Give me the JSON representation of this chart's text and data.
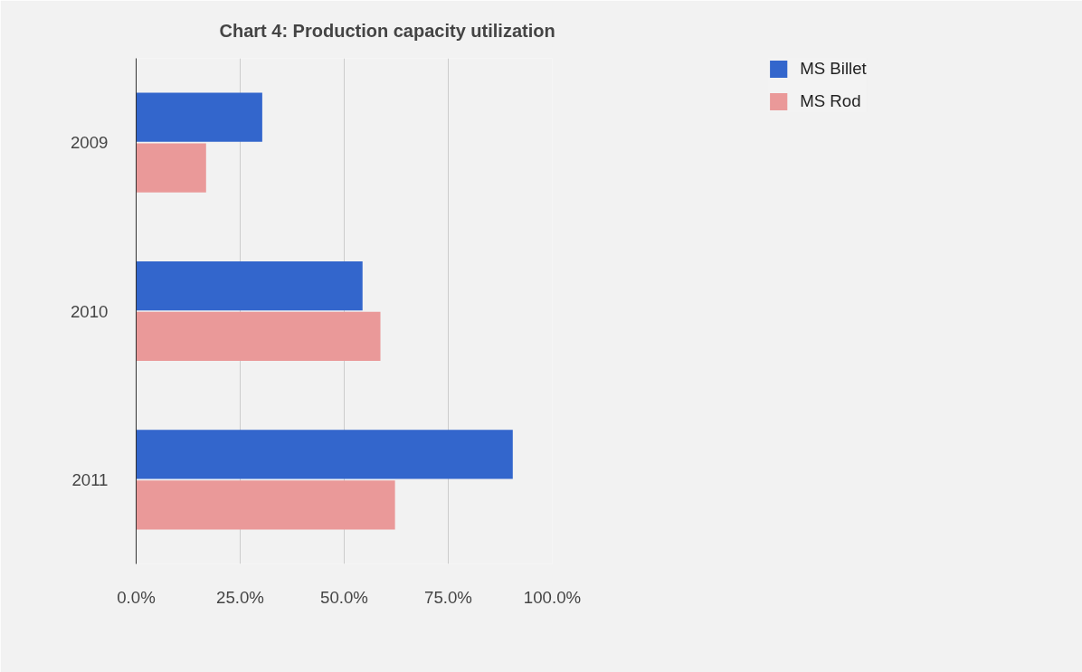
{
  "chart_data": {
    "type": "bar",
    "orientation": "horizontal",
    "title": "Chart 4: Production capacity utilization",
    "categories": [
      "2009",
      "2010",
      "2011"
    ],
    "series": [
      {
        "name": "MS Billet",
        "color": "#3366cc",
        "values": [
          30.3,
          54.4,
          90.5
        ]
      },
      {
        "name": "MS Rod",
        "color": "#ea9999",
        "values": [
          16.8,
          58.7,
          62.2
        ]
      }
    ],
    "xlim": [
      0,
      100
    ],
    "xticks": [
      {
        "value": 0,
        "label": "0.0%"
      },
      {
        "value": 25,
        "label": "25.0%"
      },
      {
        "value": 50,
        "label": "50.0%"
      },
      {
        "value": 75,
        "label": "75.0%"
      },
      {
        "value": 100,
        "label": "100.0%"
      }
    ],
    "grid": "x",
    "legend": "top right"
  }
}
